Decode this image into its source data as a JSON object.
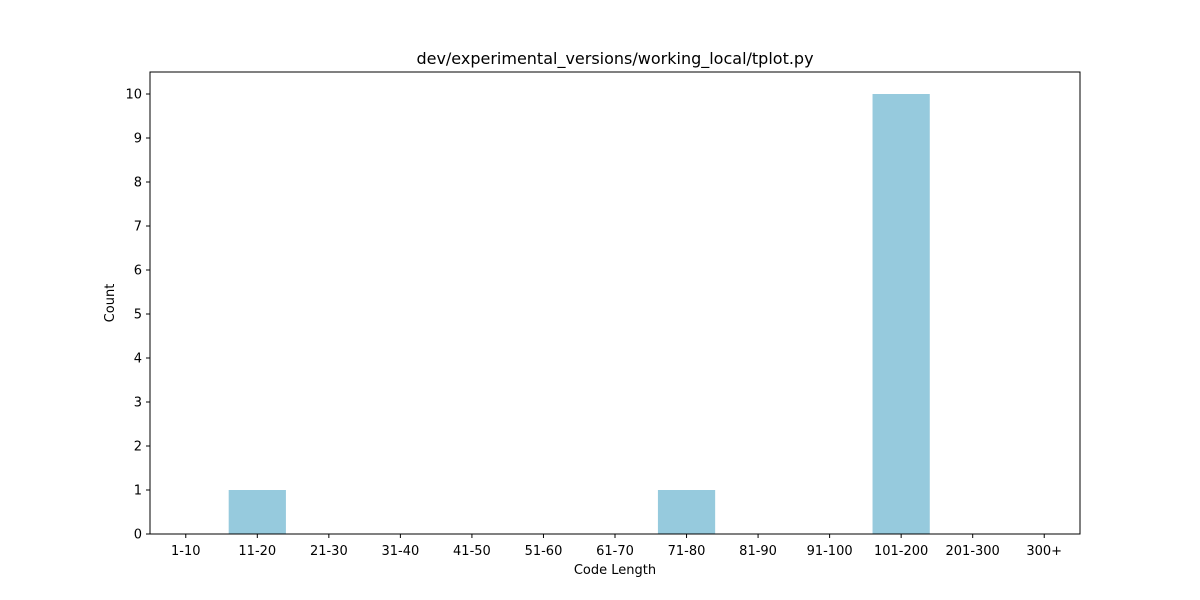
{
  "chart_data": {
    "type": "bar",
    "title": "dev/experimental_versions/working_local/tplot.py",
    "xlabel": "Code Length",
    "ylabel": "Count",
    "categories": [
      "1-10",
      "11-20",
      "21-30",
      "31-40",
      "41-50",
      "51-60",
      "61-70",
      "71-80",
      "81-90",
      "91-100",
      "101-200",
      "201-300",
      "300+"
    ],
    "values": [
      0,
      1,
      0,
      0,
      0,
      0,
      0,
      1,
      0,
      0,
      10,
      0,
      0
    ],
    "ylim": [
      0,
      10.5
    ],
    "yticks": [
      0,
      1,
      2,
      3,
      4,
      5,
      6,
      7,
      8,
      9,
      10
    ],
    "bar_color": "#96cadd",
    "grid": false,
    "legend": "none"
  }
}
